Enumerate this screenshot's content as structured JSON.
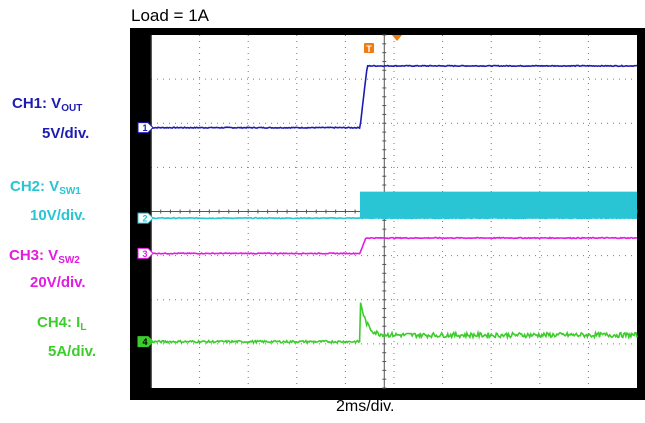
{
  "chart_data": {
    "type": "line",
    "title": "Load = 1A",
    "xlabel": "2ms/div.",
    "grid": true,
    "background_color": "#000000",
    "grid_color": "#ffffff",
    "divisions": {
      "horizontal": 10,
      "vertical": 8
    },
    "trigger_marker": "T",
    "trigger_position_div": 4.8,
    "series": [
      {
        "id": "ch1",
        "label_prefix": "CH1: V",
        "label_sub": "OUT",
        "scale": "5V/div.",
        "marker": "1",
        "color": "#1c1cb4",
        "level_div": [
          5.9,
          7.3
        ],
        "step_div": 4.3,
        "ramp_div": 0.15,
        "noise_div": 0.02,
        "overshoot_div": 0
      },
      {
        "id": "ch2",
        "label_prefix": "CH2: V",
        "label_sub": "SW1",
        "scale": "10V/div.",
        "marker": "2",
        "color": "#29c5d4",
        "level_div": [
          3.85,
          3.85
        ],
        "switching_top_div": 4.45,
        "step_div": 4.3,
        "noise_div": 0.02
      },
      {
        "id": "ch3",
        "label_prefix": "CH3: V",
        "label_sub": "SW2",
        "scale": "20V/div.",
        "marker": "3",
        "color": "#e21ce2",
        "level_div": [
          3.05,
          3.4
        ],
        "step_div": 4.3,
        "ramp_div": 0.12,
        "noise_div": 0.02,
        "overshoot_div": 0
      },
      {
        "id": "ch4",
        "label_prefix": "CH4: I",
        "label_sub": "L",
        "scale": "5A/div.",
        "marker": "4",
        "color": "#3ccc2c",
        "level_div": [
          1.05,
          1.2
        ],
        "step_div": 4.3,
        "ramp_div": 0.02,
        "noise_div": 0.05,
        "overshoot_div": 0.85,
        "overshoot_decay_div": 0.12
      }
    ]
  }
}
